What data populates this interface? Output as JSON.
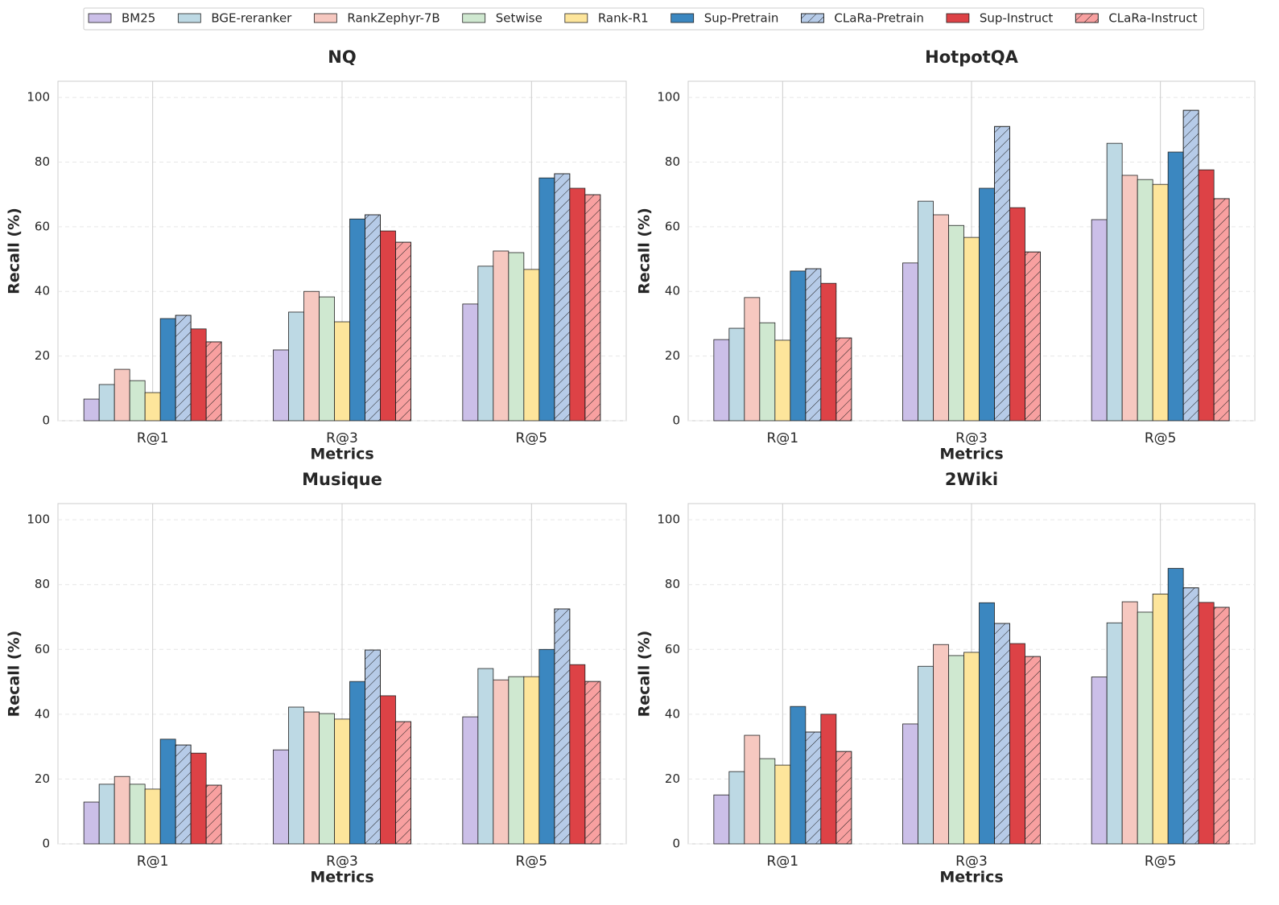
{
  "legend": [
    {
      "name": "BM25",
      "color": "#cbbfe8",
      "hatch": false
    },
    {
      "name": "BGE-reranker",
      "color": "#bdd9e4",
      "hatch": false
    },
    {
      "name": "RankZephyr-7B",
      "color": "#f6c8c0",
      "hatch": false
    },
    {
      "name": "Setwise",
      "color": "#cfe8d0",
      "hatch": false
    },
    {
      "name": "Rank-R1",
      "color": "#fde59b",
      "hatch": false
    },
    {
      "name": "Sup-Pretrain",
      "color": "#3b87c0",
      "hatch": false
    },
    {
      "name": "CLaRa-Pretrain",
      "color": "#b6cbe8",
      "hatch": true
    },
    {
      "name": "Sup-Instruct",
      "color": "#dd4246",
      "hatch": false
    },
    {
      "name": "CLaRa-Instruct",
      "color": "#f8a0a0",
      "hatch": true
    }
  ],
  "chart_data": [
    {
      "type": "bar",
      "title": "NQ",
      "xlabel": "Metrics",
      "ylabel": "Recall (%)",
      "categories": [
        "R@1",
        "R@3",
        "R@5"
      ],
      "ylim": [
        0,
        105
      ],
      "yticks": [
        0,
        20,
        40,
        60,
        80,
        100
      ],
      "grid": true,
      "series": [
        {
          "values": [
            6.7,
            21.9,
            36.1
          ]
        },
        {
          "values": [
            11.2,
            33.6,
            47.8
          ]
        },
        {
          "values": [
            15.9,
            40,
            52.5
          ]
        },
        {
          "values": [
            12.4,
            38.3,
            52
          ]
        },
        {
          "values": [
            8.7,
            30.6,
            46.8
          ]
        },
        {
          "values": [
            31.6,
            62.4,
            75.1
          ]
        },
        {
          "values": [
            32.6,
            63.7,
            76.4
          ]
        },
        {
          "values": [
            28.4,
            58.7,
            71.9
          ]
        },
        {
          "values": [
            24.4,
            55.2,
            69.9
          ]
        }
      ]
    },
    {
      "type": "bar",
      "title": "HotpotQA",
      "xlabel": "Metrics",
      "ylabel": "Recall (%)",
      "categories": [
        "R@1",
        "R@3",
        "R@5"
      ],
      "ylim": [
        0,
        105
      ],
      "yticks": [
        0,
        20,
        40,
        60,
        80,
        100
      ],
      "grid": true,
      "series": [
        {
          "values": [
            25.1,
            48.8,
            62.2
          ]
        },
        {
          "values": [
            28.6,
            67.9,
            85.8
          ]
        },
        {
          "values": [
            38.1,
            63.7,
            75.9
          ]
        },
        {
          "values": [
            30.3,
            60.4,
            74.6
          ]
        },
        {
          "values": [
            24.9,
            56.7,
            73.1
          ]
        },
        {
          "values": [
            46.3,
            71.9,
            83.1
          ]
        },
        {
          "values": [
            47,
            91,
            96
          ]
        },
        {
          "values": [
            42.5,
            65.9,
            77.6
          ]
        },
        {
          "values": [
            25.6,
            52.2,
            68.7
          ]
        }
      ]
    },
    {
      "type": "bar",
      "title": "Musique",
      "xlabel": "Metrics",
      "ylabel": "Recall (%)",
      "categories": [
        "R@1",
        "R@3",
        "R@5"
      ],
      "ylim": [
        0,
        105
      ],
      "yticks": [
        0,
        20,
        40,
        60,
        80,
        100
      ],
      "grid": true,
      "series": [
        {
          "values": [
            12.9,
            29,
            39.2
          ]
        },
        {
          "values": [
            18.4,
            42.2,
            54.1
          ]
        },
        {
          "values": [
            20.8,
            40.7,
            50.6
          ]
        },
        {
          "values": [
            18.4,
            40.2,
            51.6
          ]
        },
        {
          "values": [
            16.9,
            38.5,
            51.6
          ]
        },
        {
          "values": [
            32.3,
            50.1,
            60
          ]
        },
        {
          "values": [
            30.5,
            59.8,
            72.5
          ]
        },
        {
          "values": [
            28,
            45.7,
            55.3
          ]
        },
        {
          "values": [
            18.1,
            37.7,
            50.1
          ]
        }
      ]
    },
    {
      "type": "bar",
      "title": "2Wiki",
      "xlabel": "Metrics",
      "ylabel": "Recall (%)",
      "categories": [
        "R@1",
        "R@3",
        "R@5"
      ],
      "ylim": [
        0,
        105
      ],
      "yticks": [
        0,
        20,
        40,
        60,
        80,
        100
      ],
      "grid": true,
      "series": [
        {
          "values": [
            15.1,
            37,
            51.5
          ]
        },
        {
          "values": [
            22.3,
            54.8,
            68.2
          ]
        },
        {
          "values": [
            33.5,
            61.5,
            74.7
          ]
        },
        {
          "values": [
            26.3,
            58.1,
            71.5
          ]
        },
        {
          "values": [
            24.3,
            59.1,
            77.1
          ]
        },
        {
          "values": [
            42.4,
            74.4,
            85
          ]
        },
        {
          "values": [
            34.5,
            68,
            79
          ]
        },
        {
          "values": [
            40,
            61.8,
            74.5
          ]
        },
        {
          "values": [
            28.5,
            57.8,
            73
          ]
        }
      ]
    }
  ]
}
